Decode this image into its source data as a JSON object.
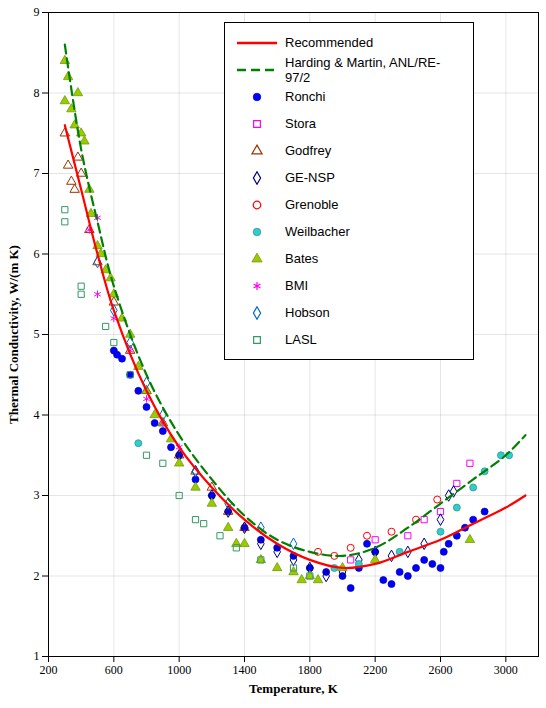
{
  "chart_data": {
    "type": "scatter",
    "x_label": "Temperature, K",
    "y_label": "Thermal Conductivity, W/(m K)",
    "xlim": [
      200,
      3200
    ],
    "xticks": [
      200,
      600,
      1000,
      1400,
      1800,
      2200,
      2600,
      3000
    ],
    "ylim": [
      1,
      9
    ],
    "yticks": [
      1,
      2,
      3,
      4,
      5,
      6,
      7,
      8,
      9
    ],
    "grid": true,
    "legend": "top-right",
    "series": [
      {
        "name": "Recommended",
        "type": "line",
        "color": "#ff0000",
        "line_style": "solid",
        "x": [
          300,
          400,
          500,
          600,
          800,
          1000,
          1200,
          1400,
          1600,
          1800,
          2000,
          2200,
          2400,
          2600,
          2800,
          3000,
          3120
        ],
        "values": [
          7.6,
          6.8,
          6.0,
          5.3,
          4.3,
          3.6,
          3.1,
          2.7,
          2.4,
          2.2,
          2.1,
          2.15,
          2.3,
          2.45,
          2.65,
          2.85,
          3.0
        ]
      },
      {
        "name": "Harding & Martin, ANL/RE-97/2",
        "type": "line",
        "color": "#008000",
        "line_style": "dashed",
        "x": [
          300,
          400,
          500,
          600,
          800,
          1000,
          1200,
          1400,
          1600,
          1800,
          2000,
          2200,
          2400,
          2600,
          2800,
          3000,
          3120
        ],
        "values": [
          8.6,
          7.3,
          6.4,
          5.6,
          4.5,
          3.75,
          3.2,
          2.75,
          2.45,
          2.3,
          2.25,
          2.35,
          2.6,
          2.9,
          3.2,
          3.5,
          3.75
        ]
      },
      {
        "name": "Ronchi",
        "type": "scatter",
        "color": "#0000ff",
        "marker": "circle",
        "x": [
          600,
          620,
          650,
          700,
          750,
          800,
          850,
          900,
          950,
          1000,
          1100,
          1200,
          1300,
          1400,
          1500,
          1600,
          1700,
          1800,
          1900,
          2000,
          2050,
          2100,
          2150,
          2200,
          2250,
          2300,
          2350,
          2400,
          2450,
          2500,
          2550,
          2600,
          2620,
          2650,
          2700,
          2750,
          2800,
          2870
        ],
        "values": [
          4.8,
          4.75,
          4.7,
          4.5,
          4.3,
          4.1,
          3.9,
          3.8,
          3.6,
          3.5,
          3.2,
          3.0,
          2.8,
          2.6,
          2.45,
          2.35,
          2.25,
          2.1,
          2.05,
          2.0,
          1.85,
          2.1,
          2.4,
          2.3,
          1.95,
          1.9,
          2.05,
          2.0,
          2.1,
          2.2,
          2.15,
          2.1,
          2.3,
          2.4,
          2.5,
          2.6,
          2.7,
          2.8
        ]
      },
      {
        "name": "Stora",
        "type": "scatter",
        "color": "#ff00ff",
        "marker": "open-square",
        "x": [
          2050,
          2200,
          2400,
          2500,
          2600,
          2700,
          2780
        ],
        "values": [
          2.2,
          2.45,
          2.5,
          2.7,
          2.8,
          3.15,
          3.4
        ]
      },
      {
        "name": "Godfrey",
        "type": "scatter",
        "color": "#993300",
        "marker": "open-triangle",
        "x": [
          300,
          320,
          340,
          360,
          380,
          400,
          450,
          500,
          600,
          700,
          800,
          900,
          1000,
          1100,
          1200,
          1300,
          1400
        ],
        "values": [
          7.5,
          7.1,
          6.9,
          6.8,
          7.2,
          7.0,
          6.3,
          5.9,
          5.4,
          4.8,
          4.3,
          3.9,
          3.5,
          3.3,
          3.1,
          2.8,
          2.6
        ]
      },
      {
        "name": "GE-NSP",
        "type": "scatter",
        "color": "#000080",
        "marker": "open-diamond",
        "x": [
          1000,
          1100,
          1200,
          1300,
          1400,
          1500,
          1600,
          1700,
          1800,
          1900,
          2000,
          2100,
          2200,
          2300,
          2400,
          2500,
          2600,
          2650,
          2680
        ],
        "values": [
          3.5,
          3.3,
          3.0,
          2.8,
          2.6,
          2.4,
          2.3,
          2.2,
          2.1,
          2.0,
          2.05,
          2.2,
          2.3,
          2.25,
          2.3,
          2.4,
          2.7,
          3.0,
          3.05
        ]
      },
      {
        "name": "Grenoble",
        "type": "scatter",
        "color": "#ff0000",
        "marker": "open-circle",
        "x": [
          1850,
          1950,
          2050,
          2150,
          2300,
          2450,
          2580
        ],
        "values": [
          2.3,
          2.25,
          2.35,
          2.5,
          2.55,
          2.7,
          2.95
        ]
      },
      {
        "name": "Weilbacher",
        "type": "scatter",
        "color": "#33cccc",
        "marker": "circle",
        "x": [
          750,
          1950,
          2100,
          2350,
          2600,
          2700,
          2800,
          2870,
          2970,
          3020
        ],
        "values": [
          3.65,
          2.1,
          2.15,
          2.3,
          2.55,
          2.85,
          3.1,
          3.3,
          3.5,
          3.5
        ]
      },
      {
        "name": "Bates",
        "type": "scatter",
        "color": "#99cc00",
        "marker": "triangle",
        "x": [
          300,
          300,
          320,
          340,
          360,
          380,
          400,
          420,
          450,
          460,
          500,
          520,
          550,
          580,
          600,
          650,
          700,
          750,
          800,
          850,
          900,
          950,
          1000,
          1100,
          1200,
          1300,
          1350,
          1400,
          1500,
          1600,
          1700,
          1750,
          1800,
          1850,
          2000,
          2200,
          2780
        ],
        "values": [
          8.4,
          7.9,
          8.2,
          7.8,
          7.6,
          8.0,
          7.5,
          7.4,
          6.8,
          6.5,
          6.1,
          6.0,
          5.8,
          5.7,
          5.5,
          5.2,
          5.0,
          4.6,
          4.3,
          4.0,
          3.9,
          3.7,
          3.4,
          3.1,
          2.9,
          2.6,
          2.4,
          2.4,
          2.2,
          2.1,
          2.05,
          1.95,
          2.0,
          1.95,
          2.1,
          2.2,
          2.45
        ]
      },
      {
        "name": "BMI",
        "type": "scatter",
        "color": "#ff00ff",
        "marker": "asterisk",
        "x": [
          450,
          500,
          500,
          600,
          700,
          800,
          900,
          1000
        ],
        "values": [
          6.3,
          6.45,
          5.5,
          5.2,
          4.8,
          4.2,
          3.9,
          3.6
        ]
      },
      {
        "name": "Hobson",
        "type": "scatter",
        "color": "#0066cc",
        "marker": "open-diamond",
        "x": [
          500,
          600,
          700,
          800,
          900,
          1100,
          1300,
          1500,
          1700
        ],
        "values": [
          5.9,
          5.3,
          4.9,
          4.4,
          4.0,
          3.3,
          2.9,
          2.6,
          2.4
        ]
      },
      {
        "name": "LASL",
        "type": "scatter",
        "color": "#339966",
        "marker": "open-square",
        "x": [
          300,
          300,
          400,
          400,
          550,
          600,
          700,
          800,
          900,
          1000,
          1100,
          1150,
          1250,
          1350,
          1500,
          1700,
          1800
        ],
        "values": [
          6.55,
          6.4,
          5.6,
          5.5,
          5.1,
          4.9,
          4.5,
          3.5,
          3.4,
          3.0,
          2.7,
          2.65,
          2.5,
          2.35,
          2.2,
          2.1,
          2.0
        ]
      }
    ]
  }
}
